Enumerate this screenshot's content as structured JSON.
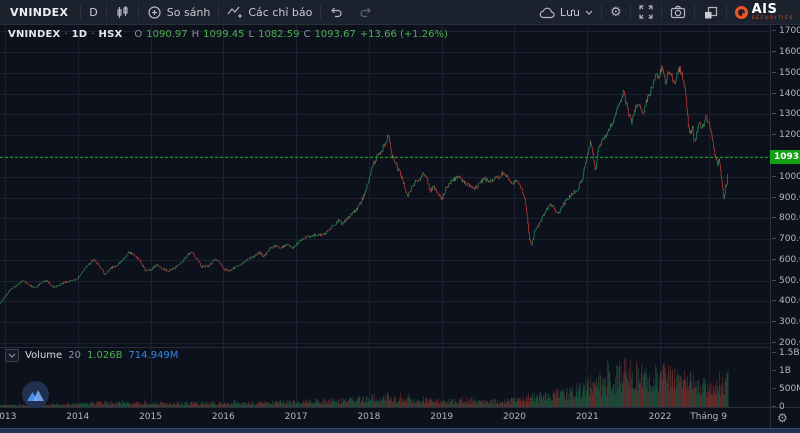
{
  "toolbar": {
    "symbol": "VNINDEX",
    "interval": "D",
    "compare": "So sánh",
    "indicators": "Các chỉ báo",
    "save": "Lưu",
    "brand_name": "AIS",
    "brand_sub": "SECURITIES",
    "icons": [
      "candlestick-icon",
      "compare-plus-icon",
      "indicators-wave-icon",
      "undo-icon",
      "redo-icon",
      "cloud-icon",
      "gear-icon",
      "fullscreen-icon",
      "camera-icon",
      "layout-icon"
    ]
  },
  "legend": {
    "symbol": "VNINDEX",
    "dot1": "·",
    "interval": "1D",
    "dot2": "·",
    "exchange": "HSX",
    "o_label": "O",
    "o_value": "1090.97",
    "h_label": "H",
    "h_value": "1099.45",
    "l_label": "L",
    "l_value": "1082.59",
    "c_label": "C",
    "c_value": "1093.67",
    "change": "+13.66 (+1.26%)"
  },
  "volume_legend": {
    "label": "Volume",
    "ma_length": "20",
    "value": "1.026B",
    "ma_value": "714.949M"
  },
  "price_label": "1093.67",
  "colors": {
    "background": "#0d111b",
    "toolbar_bg": "#1c212e",
    "grid": "#1b2130",
    "separator": "#262c3b",
    "up": "#2e9c62",
    "down": "#d6453f",
    "up_vol": "rgba(46,140,92,0.55)",
    "down_vol": "rgba(198,72,62,0.55)",
    "price_line": "#15a315",
    "price_label_bg": "#14a014",
    "axis_text": "#b2b7c2",
    "legend_green": "#4caf50",
    "legend_blue": "#3087e8",
    "brand_orange": "#f05423"
  },
  "chart_data": {
    "type": "candlestick",
    "title": "VNINDEX · 1D · HSX",
    "last_bar": {
      "open": 1090.97,
      "high": 1099.45,
      "low": 1082.59,
      "close": 1093.67,
      "volume_million": 1026,
      "change_text": "+13.66 (+1.26%)"
    },
    "current_price": 1093.67,
    "x_axis": {
      "min": 2012.932,
      "max": 2023.51,
      "labels": [
        {
          "t": 2013,
          "label": "2013"
        },
        {
          "t": 2014,
          "label": "2014"
        },
        {
          "t": 2015,
          "label": "2015"
        },
        {
          "t": 2016,
          "label": "2016"
        },
        {
          "t": 2017,
          "label": "2017"
        },
        {
          "t": 2018,
          "label": "2018"
        },
        {
          "t": 2019,
          "label": "2019"
        },
        {
          "t": 2020,
          "label": "2020"
        },
        {
          "t": 2021,
          "label": "2021"
        },
        {
          "t": 2022,
          "label": "2022"
        },
        {
          "t": 2022.667,
          "label": "Tháng 9"
        }
      ]
    },
    "y_axis": {
      "min": 181,
      "max": 1730,
      "grid_step": 100,
      "grid_from": 200,
      "grid_to": 1700,
      "ticks": [
        "1700.00",
        "1600.00",
        "1500.00",
        "1400.00",
        "1300.00",
        "1200.00",
        "1000.00",
        "900.00",
        "800.00",
        "700.00",
        "600.00",
        "500.00",
        "400.00",
        "300.00",
        "200.00"
      ]
    },
    "volume_axis": {
      "max_million": 1660,
      "ticks": [
        {
          "v": 1500,
          "label": "1.5B"
        },
        {
          "v": 1000,
          "label": "1B"
        },
        {
          "v": 500,
          "label": "500M"
        },
        {
          "v": 0,
          "label": "0"
        }
      ]
    },
    "candles_per_year": 104,
    "seed": 11,
    "end_t": 2022.935,
    "price_path_year_price": [
      [
        2012.932,
        390
      ],
      [
        2013.0,
        425
      ],
      [
        2013.08,
        462
      ],
      [
        2013.17,
        480
      ],
      [
        2013.25,
        502
      ],
      [
        2013.33,
        478
      ],
      [
        2013.42,
        466
      ],
      [
        2013.5,
        492
      ],
      [
        2013.58,
        500
      ],
      [
        2013.67,
        468
      ],
      [
        2013.75,
        480
      ],
      [
        2013.83,
        494
      ],
      [
        2013.92,
        502
      ],
      [
        2014.0,
        512
      ],
      [
        2014.08,
        552
      ],
      [
        2014.16,
        582
      ],
      [
        2014.22,
        600
      ],
      [
        2014.3,
        572
      ],
      [
        2014.37,
        532
      ],
      [
        2014.45,
        560
      ],
      [
        2014.55,
        578
      ],
      [
        2014.65,
        608
      ],
      [
        2014.7,
        638
      ],
      [
        2014.78,
        622
      ],
      [
        2014.85,
        598
      ],
      [
        2014.93,
        548
      ],
      [
        2015.0,
        552
      ],
      [
        2015.08,
        576
      ],
      [
        2015.17,
        558
      ],
      [
        2015.25,
        545
      ],
      [
        2015.33,
        562
      ],
      [
        2015.42,
        588
      ],
      [
        2015.5,
        618
      ],
      [
        2015.56,
        638
      ],
      [
        2015.63,
        606
      ],
      [
        2015.7,
        566
      ],
      [
        2015.8,
        572
      ],
      [
        2015.88,
        604
      ],
      [
        2015.95,
        588
      ],
      [
        2016.0,
        556
      ],
      [
        2016.08,
        548
      ],
      [
        2016.17,
        566
      ],
      [
        2016.25,
        578
      ],
      [
        2016.33,
        604
      ],
      [
        2016.42,
        618
      ],
      [
        2016.5,
        638
      ],
      [
        2016.55,
        614
      ],
      [
        2016.63,
        652
      ],
      [
        2016.71,
        668
      ],
      [
        2016.79,
        658
      ],
      [
        2016.87,
        674
      ],
      [
        2016.95,
        656
      ],
      [
        2017.04,
        688
      ],
      [
        2017.12,
        706
      ],
      [
        2017.21,
        716
      ],
      [
        2017.29,
        724
      ],
      [
        2017.37,
        718
      ],
      [
        2017.46,
        748
      ],
      [
        2017.54,
        776
      ],
      [
        2017.58,
        792
      ],
      [
        2017.63,
        772
      ],
      [
        2017.71,
        804
      ],
      [
        2017.79,
        828
      ],
      [
        2017.85,
        852
      ],
      [
        2017.92,
        902
      ],
      [
        2017.97,
        952
      ],
      [
        2018.02,
        1022
      ],
      [
        2018.07,
        1068
      ],
      [
        2018.12,
        1105
      ],
      [
        2018.18,
        1128
      ],
      [
        2018.23,
        1172
      ],
      [
        2018.27,
        1200
      ],
      [
        2018.32,
        1098
      ],
      [
        2018.37,
        1062
      ],
      [
        2018.42,
        1022
      ],
      [
        2018.48,
        966
      ],
      [
        2018.53,
        902
      ],
      [
        2018.58,
        948
      ],
      [
        2018.64,
        976
      ],
      [
        2018.7,
        990
      ],
      [
        2018.75,
        1012
      ],
      [
        2018.8,
        986
      ],
      [
        2018.84,
        932
      ],
      [
        2018.89,
        952
      ],
      [
        2018.94,
        922
      ],
      [
        2019.0,
        892
      ],
      [
        2019.07,
        952
      ],
      [
        2019.15,
        986
      ],
      [
        2019.22,
        1002
      ],
      [
        2019.3,
        976
      ],
      [
        2019.38,
        956
      ],
      [
        2019.45,
        944
      ],
      [
        2019.52,
        966
      ],
      [
        2019.58,
        992
      ],
      [
        2019.65,
        976
      ],
      [
        2019.72,
        990
      ],
      [
        2019.79,
        1002
      ],
      [
        2019.85,
        1022
      ],
      [
        2019.91,
        996
      ],
      [
        2019.97,
        962
      ],
      [
        2020.03,
        986
      ],
      [
        2020.1,
        932
      ],
      [
        2020.15,
        882
      ],
      [
        2020.2,
        712
      ],
      [
        2020.23,
        662
      ],
      [
        2020.28,
        746
      ],
      [
        2020.34,
        772
      ],
      [
        2020.42,
        832
      ],
      [
        2020.5,
        866
      ],
      [
        2020.56,
        842
      ],
      [
        2020.61,
        826
      ],
      [
        2020.68,
        872
      ],
      [
        2020.75,
        906
      ],
      [
        2020.81,
        926
      ],
      [
        2020.87,
        942
      ],
      [
        2020.93,
        988
      ],
      [
        2021.0,
        1102
      ],
      [
        2021.04,
        1164
      ],
      [
        2021.08,
        1098
      ],
      [
        2021.11,
        1028
      ],
      [
        2021.15,
        1132
      ],
      [
        2021.2,
        1172
      ],
      [
        2021.26,
        1202
      ],
      [
        2021.31,
        1242
      ],
      [
        2021.37,
        1282
      ],
      [
        2021.43,
        1352
      ],
      [
        2021.5,
        1408
      ],
      [
        2021.54,
        1342
      ],
      [
        2021.57,
        1302
      ],
      [
        2021.61,
        1256
      ],
      [
        2021.66,
        1332
      ],
      [
        2021.71,
        1342
      ],
      [
        2021.76,
        1302
      ],
      [
        2021.81,
        1366
      ],
      [
        2021.86,
        1402
      ],
      [
        2021.91,
        1462
      ],
      [
        2021.94,
        1500
      ],
      [
        2021.97,
        1472
      ],
      [
        2022.0,
        1502
      ],
      [
        2022.03,
        1528
      ],
      [
        2022.07,
        1442
      ],
      [
        2022.1,
        1492
      ],
      [
        2022.13,
        1512
      ],
      [
        2022.17,
        1462
      ],
      [
        2022.2,
        1442
      ],
      [
        2022.24,
        1502
      ],
      [
        2022.27,
        1522
      ],
      [
        2022.31,
        1478
      ],
      [
        2022.34,
        1428
      ],
      [
        2022.36,
        1362
      ],
      [
        2022.39,
        1242
      ],
      [
        2022.41,
        1202
      ],
      [
        2022.44,
        1242
      ],
      [
        2022.47,
        1162
      ],
      [
        2022.5,
        1202
      ],
      [
        2022.53,
        1262
      ],
      [
        2022.56,
        1232
      ],
      [
        2022.6,
        1252
      ],
      [
        2022.63,
        1286
      ],
      [
        2022.66,
        1268
      ],
      [
        2022.7,
        1218
      ],
      [
        2022.73,
        1152
      ],
      [
        2022.76,
        1102
      ],
      [
        2022.79,
        1052
      ],
      [
        2022.81,
        1082
      ],
      [
        2022.83,
        1022
      ],
      [
        2022.85,
        976
      ],
      [
        2022.87,
        906
      ],
      [
        2022.88,
        878
      ],
      [
        2022.89,
        940
      ],
      [
        2022.9,
        964
      ],
      [
        2022.91,
        932
      ],
      [
        2022.92,
        986
      ],
      [
        2022.93,
        1052
      ],
      [
        2022.935,
        1093
      ]
    ],
    "volume_path_year_million": [
      [
        2012.932,
        48
      ],
      [
        2013.5,
        56
      ],
      [
        2014.0,
        82
      ],
      [
        2014.3,
        112
      ],
      [
        2014.7,
        96
      ],
      [
        2015.0,
        86
      ],
      [
        2015.5,
        96
      ],
      [
        2016.0,
        92
      ],
      [
        2016.5,
        106
      ],
      [
        2017.0,
        132
      ],
      [
        2017.5,
        162
      ],
      [
        2017.95,
        205
      ],
      [
        2018.12,
        245
      ],
      [
        2018.3,
        225
      ],
      [
        2018.6,
        165
      ],
      [
        2019.0,
        152
      ],
      [
        2019.5,
        142
      ],
      [
        2019.9,
        152
      ],
      [
        2020.1,
        185
      ],
      [
        2020.25,
        285
      ],
      [
        2020.5,
        305
      ],
      [
        2020.7,
        355
      ],
      [
        2020.9,
        435
      ],
      [
        2021.0,
        555
      ],
      [
        2021.12,
        605
      ],
      [
        2021.25,
        655
      ],
      [
        2021.4,
        785
      ],
      [
        2021.5,
        855
      ],
      [
        2021.6,
        905
      ],
      [
        2021.68,
        825
      ],
      [
        2021.76,
        755
      ],
      [
        2021.85,
        805
      ],
      [
        2021.95,
        855
      ],
      [
        2022.05,
        805
      ],
      [
        2022.15,
        755
      ],
      [
        2022.25,
        705
      ],
      [
        2022.35,
        685
      ],
      [
        2022.45,
        605
      ],
      [
        2022.55,
        565
      ],
      [
        2022.65,
        525
      ],
      [
        2022.75,
        485
      ],
      [
        2022.82,
        525
      ],
      [
        2022.87,
        565
      ],
      [
        2022.9,
        625
      ],
      [
        2022.92,
        705
      ],
      [
        2022.935,
        1026
      ]
    ]
  }
}
